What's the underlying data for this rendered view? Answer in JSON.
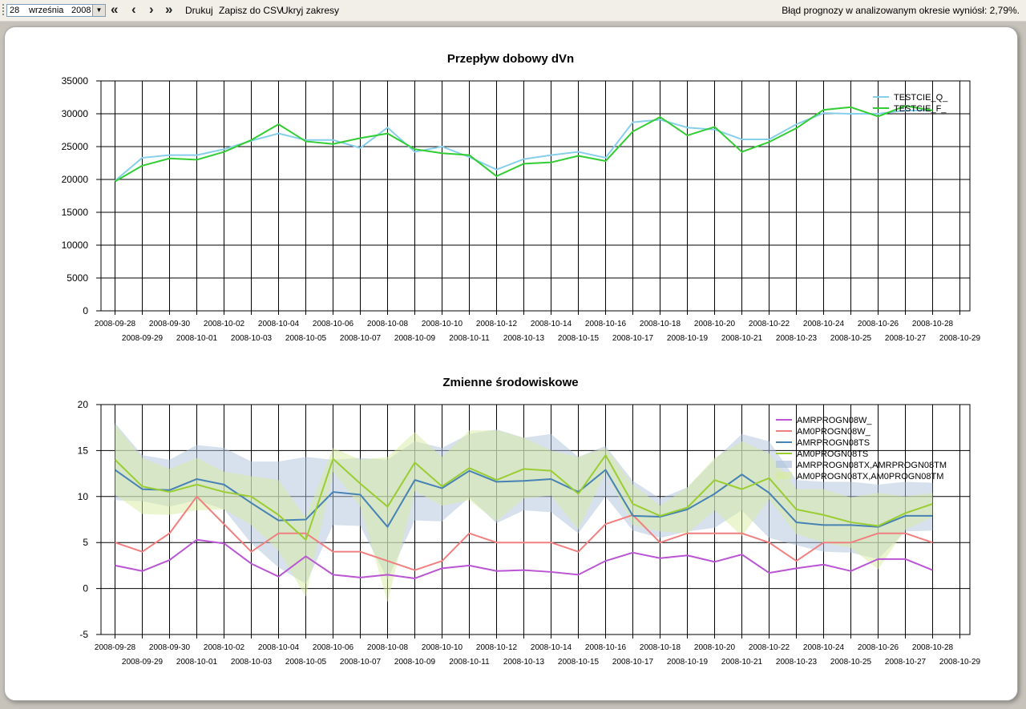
{
  "toolbar": {
    "day": "28",
    "month": "września",
    "year": "2008",
    "btn_first": "«",
    "btn_prev": "‹",
    "btn_next": "›",
    "btn_last": "»",
    "print_label": "Drukuj",
    "csv_label": "Zapisz do CSV",
    "hide_label": "Ukryj zakresy",
    "status": "Błąd prognozy w analizowanym okresie wyniósł: 2,79%."
  },
  "colors": {
    "q": "#87ceeb",
    "f": "#32cd32",
    "w_": "#ba55d3",
    "w0": "#f08080",
    "ts_": "#4682b4",
    "ts0": "#9acd32",
    "band1": "#b0c4de",
    "band2": "#d8eba0"
  },
  "chart_data": [
    {
      "type": "line",
      "title": "Przepływ dobowy dVn",
      "ylim": [
        0,
        35000
      ],
      "yticks": [
        0,
        5000,
        10000,
        15000,
        20000,
        25000,
        30000,
        35000
      ],
      "grid": true,
      "legend_position": "top-right",
      "x": [
        "2008-09-28",
        "2008-09-29",
        "2008-09-30",
        "2008-10-01",
        "2008-10-02",
        "2008-10-03",
        "2008-10-04",
        "2008-10-05",
        "2008-10-06",
        "2008-10-07",
        "2008-10-08",
        "2008-10-09",
        "2008-10-10",
        "2008-10-11",
        "2008-10-12",
        "2008-10-13",
        "2008-10-14",
        "2008-10-15",
        "2008-10-16",
        "2008-10-17",
        "2008-10-18",
        "2008-10-19",
        "2008-10-20",
        "2008-10-21",
        "2008-10-22",
        "2008-10-23",
        "2008-10-24",
        "2008-10-25",
        "2008-10-26",
        "2008-10-27",
        "2008-10-28",
        "2008-10-29"
      ],
      "series": [
        {
          "name": "TESTCIE_Q_",
          "color_key": "q",
          "values": [
            19800,
            23300,
            23700,
            23700,
            24600,
            25900,
            27000,
            26000,
            26000,
            24800,
            27900,
            24200,
            25000,
            23400,
            21500,
            23100,
            23700,
            24200,
            23300,
            28700,
            29100,
            27900,
            27600,
            26100,
            26100,
            28400,
            30100,
            30000,
            30000,
            30500,
            30500,
            null
          ]
        },
        {
          "name": "TESTCIE_F_",
          "color_key": "f",
          "values": [
            19700,
            22100,
            23200,
            23000,
            24200,
            26000,
            28400,
            25800,
            25400,
            26300,
            27000,
            24600,
            24000,
            23700,
            20500,
            22400,
            22600,
            23600,
            22800,
            27300,
            29500,
            26700,
            28000,
            24200,
            25700,
            27800,
            30600,
            31000,
            29600,
            31200,
            30500,
            null
          ]
        }
      ]
    },
    {
      "type": "area",
      "title": "Zmienne środowiskowe",
      "ylim": [
        -5,
        20
      ],
      "yticks": [
        -5,
        0,
        5,
        10,
        15,
        20
      ],
      "grid": true,
      "legend_position": "top-right",
      "x": [
        "2008-09-28",
        "2008-09-29",
        "2008-09-30",
        "2008-10-01",
        "2008-10-02",
        "2008-10-03",
        "2008-10-04",
        "2008-10-05",
        "2008-10-06",
        "2008-10-07",
        "2008-10-08",
        "2008-10-09",
        "2008-10-10",
        "2008-10-11",
        "2008-10-12",
        "2008-10-13",
        "2008-10-14",
        "2008-10-15",
        "2008-10-16",
        "2008-10-17",
        "2008-10-18",
        "2008-10-19",
        "2008-10-20",
        "2008-10-21",
        "2008-10-22",
        "2008-10-23",
        "2008-10-24",
        "2008-10-25",
        "2008-10-26",
        "2008-10-27",
        "2008-10-28",
        "2008-10-29"
      ],
      "series": [
        {
          "name": "AMRPROGN08W_",
          "color_key": "w_",
          "values": [
            2.5,
            1.9,
            3.1,
            5.3,
            4.9,
            2.7,
            1.3,
            3.5,
            1.5,
            1.2,
            1.5,
            1.1,
            2.2,
            2.5,
            1.9,
            2.0,
            1.8,
            1.5,
            3.0,
            3.9,
            3.3,
            3.6,
            2.9,
            3.7,
            1.7,
            2.2,
            2.6,
            1.9,
            3.2,
            3.2,
            2.0,
            null
          ]
        },
        {
          "name": "AM0PROGN08W_",
          "color_key": "w0",
          "values": [
            5,
            4,
            6,
            10,
            7,
            4,
            6,
            6,
            4,
            4,
            3,
            2,
            3,
            6,
            5,
            5,
            5,
            4,
            7,
            8,
            5,
            6,
            6,
            6,
            5,
            3,
            5,
            5,
            6,
            6,
            5,
            null
          ]
        },
        {
          "name": "AMRPROGN08TS",
          "color_key": "ts_",
          "values": [
            12.9,
            10.8,
            10.7,
            11.9,
            11.3,
            9.3,
            7.4,
            7.5,
            10.5,
            10.2,
            6.7,
            11.8,
            10.9,
            12.8,
            11.6,
            11.7,
            11.9,
            10.5,
            12.9,
            7.9,
            7.8,
            8.6,
            10.3,
            12.4,
            10.4,
            7.2,
            6.9,
            6.9,
            6.7,
            7.9,
            7.9,
            null
          ]
        },
        {
          "name": "AM0PROGN08TS",
          "color_key": "ts0",
          "values": [
            14.0,
            11.1,
            10.5,
            11.3,
            10.5,
            10.0,
            8.0,
            5.3,
            14.1,
            11.4,
            8.9,
            13.7,
            11.1,
            13.1,
            11.8,
            13.0,
            12.8,
            10.3,
            14.5,
            9.2,
            7.9,
            8.8,
            11.8,
            10.8,
            12.0,
            8.6,
            8.0,
            7.2,
            6.8,
            8.2,
            9.2,
            null
          ]
        }
      ],
      "bands": [
        {
          "name": "AMRPROGN08TX,AMRPROGN08TM",
          "color_key": "band1",
          "upper": [
            18.0,
            14.5,
            14.0,
            15.6,
            15.3,
            13.8,
            13.8,
            14.3,
            14.0,
            14.2,
            14.0,
            16.0,
            15.3,
            16.8,
            17.3,
            16.4,
            16.8,
            14.3,
            15.5,
            11.7,
            9.8,
            11.0,
            14.0,
            16.8,
            16.0,
            11.8,
            11.6,
            11.6,
            11.3,
            11.6,
            11.5,
            null
          ],
          "lower": [
            9.6,
            9.5,
            8.9,
            9.6,
            8.6,
            4.9,
            2.3,
            0.5,
            6.9,
            6.8,
            1.0,
            7.4,
            7.3,
            9.9,
            7.1,
            8.5,
            8.3,
            6.0,
            10.0,
            6.3,
            5.5,
            6.2,
            6.6,
            8.5,
            5.5,
            4.7,
            4.0,
            3.9,
            3.2,
            6.2,
            6.3,
            null
          ]
        },
        {
          "name": "AM0PROGN08TX,AM0PROGN08TM",
          "color_key": "band2",
          "upper": [
            17.8,
            14.2,
            13.0,
            14.2,
            12.7,
            12.2,
            11.8,
            7.7,
            15.3,
            14.0,
            14.3,
            17.0,
            14.3,
            17.2,
            17.2,
            16.4,
            15.0,
            14.3,
            15.3,
            11.3,
            9.0,
            11.0,
            14.2,
            16.0,
            14.7,
            10.8,
            10.8,
            9.9,
            10.4,
            10.0,
            10.4,
            null
          ],
          "lower": [
            10.2,
            8.1,
            8.0,
            8.5,
            8.6,
            6.9,
            4.1,
            -0.9,
            12.7,
            8.9,
            -1.5,
            10.6,
            9.0,
            9.6,
            7.3,
            9.8,
            10.1,
            6.4,
            12.7,
            6.9,
            6.2,
            6.0,
            8.5,
            5.7,
            9.7,
            5.9,
            5.0,
            4.4,
            2.1,
            6.4,
            7.8,
            null
          ]
        }
      ]
    }
  ]
}
